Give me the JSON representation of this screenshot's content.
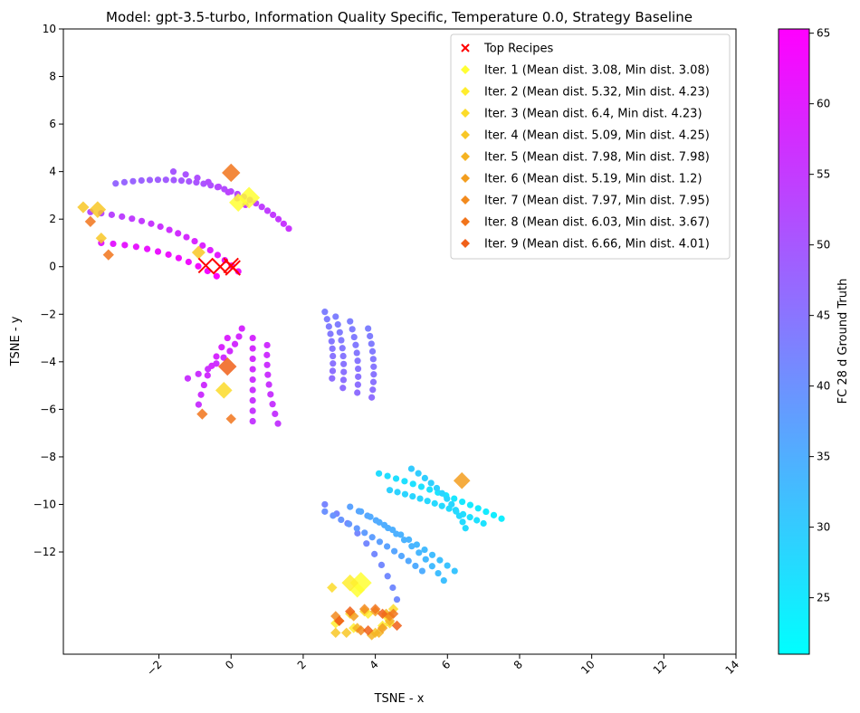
{
  "chart_data": {
    "type": "scatter",
    "title": "Model: gpt-3.5-turbo, Information Quality Specific, Temperature 0.0, Strategy Baseline",
    "xlabel": "TSNE - x",
    "ylabel": "TSNE - y",
    "xlim": [
      -4.65,
      14
    ],
    "ylim": [
      -16.3,
      10
    ],
    "x_ticks": [
      -2,
      0,
      2,
      4,
      6,
      8,
      10,
      12,
      14
    ],
    "x_tick_labels": [
      "−2",
      "0",
      "2",
      "4",
      "6",
      "8",
      "10",
      "12",
      "14"
    ],
    "y_ticks": [
      10,
      8,
      6,
      4,
      2,
      0,
      -2,
      -4,
      -6,
      -8,
      -10,
      -12
    ],
    "y_tick_labels": [
      "10",
      "8",
      "6",
      "4",
      "2",
      "0",
      "−2",
      "−4",
      "−6",
      "−8",
      "−10",
      "−12"
    ],
    "grid": false,
    "legend_position": "top-right",
    "colorbar": {
      "label": "FC 28 d Ground Truth",
      "colormap": "cool",
      "range": [
        21,
        65.3
      ],
      "ticks": [
        25,
        30,
        35,
        40,
        45,
        50,
        55,
        60,
        65
      ]
    },
    "background_points_description": "recipe embedding points colored by ground truth",
    "background_clusters": [
      {
        "x0": -3.2,
        "y0": 3.5,
        "x1": 1.6,
        "y1": 1.6,
        "bow": 0.9,
        "n": 26,
        "v0": 47,
        "v1": 56
      },
      {
        "x0": -3.9,
        "y0": 2.3,
        "x1": 0.2,
        "y1": -0.2,
        "bow": 0.5,
        "n": 18,
        "v0": 52,
        "v1": 62
      },
      {
        "x0": -3.6,
        "y0": 1.0,
        "x1": -0.4,
        "y1": -0.4,
        "bow": 0.3,
        "n": 12,
        "v0": 60,
        "v1": 64
      },
      {
        "x0": -1.6,
        "y0": 4.0,
        "x1": 0.4,
        "y1": 2.6,
        "bow": 0.2,
        "n": 8,
        "v0": 50,
        "v1": 55
      },
      {
        "x0": -1.2,
        "y0": -4.7,
        "x1": 0.3,
        "y1": -2.6,
        "bow": -0.3,
        "n": 9,
        "v0": 56,
        "v1": 58
      },
      {
        "x0": -0.9,
        "y0": -5.8,
        "x1": -0.1,
        "y1": -3.0,
        "bow": 0.1,
        "n": 8,
        "v0": 56,
        "v1": 59
      },
      {
        "x0": 0.6,
        "y0": -6.5,
        "x1": 0.6,
        "y1": -3.0,
        "bow": 0.0,
        "n": 9,
        "v0": 55,
        "v1": 58
      },
      {
        "x0": 1.3,
        "y0": -6.6,
        "x1": 1.0,
        "y1": -3.3,
        "bow": 0.1,
        "n": 9,
        "v0": 55,
        "v1": 57
      },
      {
        "x0": 2.6,
        "y0": -1.9,
        "x1": 2.8,
        "y1": -4.7,
        "bow": 0.1,
        "n": 10,
        "v0": 43,
        "v1": 46
      },
      {
        "x0": 2.9,
        "y0": -2.1,
        "x1": 3.1,
        "y1": -5.1,
        "bow": 0.1,
        "n": 10,
        "v0": 43,
        "v1": 46
      },
      {
        "x0": 3.3,
        "y0": -2.3,
        "x1": 3.5,
        "y1": -5.3,
        "bow": 0.1,
        "n": 10,
        "v0": 43,
        "v1": 46
      },
      {
        "x0": 3.8,
        "y0": -2.6,
        "x1": 3.9,
        "y1": -5.5,
        "bow": 0.1,
        "n": 10,
        "v0": 43,
        "v1": 46
      },
      {
        "x0": 4.1,
        "y0": -8.7,
        "x1": 7.5,
        "y1": -10.6,
        "bow": 0.1,
        "n": 16,
        "v0": 27,
        "v1": 24
      },
      {
        "x0": 4.4,
        "y0": -9.4,
        "x1": 7.0,
        "y1": -10.8,
        "bow": 0.1,
        "n": 14,
        "v0": 29,
        "v1": 26
      },
      {
        "x0": 5.0,
        "y0": -8.5,
        "x1": 6.5,
        "y1": -11.0,
        "bow": 0.2,
        "n": 12,
        "v0": 30,
        "v1": 27
      },
      {
        "x0": 2.6,
        "y0": -10.0,
        "x1": 4.6,
        "y1": -14.0,
        "bow": 0.3,
        "n": 10,
        "v0": 42,
        "v1": 41
      },
      {
        "x0": 2.6,
        "y0": -10.3,
        "x1": 5.3,
        "y1": -12.8,
        "bow": 0.1,
        "n": 14,
        "v0": 40,
        "v1": 35
      },
      {
        "x0": 3.3,
        "y0": -10.1,
        "x1": 6.2,
        "y1": -12.8,
        "bow": 0.1,
        "n": 14,
        "v0": 37,
        "v1": 31
      },
      {
        "x0": 3.6,
        "y0": -10.3,
        "x1": 5.9,
        "y1": -13.2,
        "bow": 0.2,
        "n": 12,
        "v0": 36,
        "v1": 32
      }
    ],
    "top_recipes": {
      "name": "Top Recipes",
      "marker": "x",
      "color": "#ff0000",
      "points": [
        [
          -0.7,
          0.05
        ],
        [
          -0.3,
          0.0
        ],
        [
          0.0,
          0.05
        ],
        [
          0.05,
          -0.05
        ]
      ]
    },
    "series": [
      {
        "name": "Iter. 1 (Mean dist. 3.08, Min dist. 3.08)",
        "color": "#ffff33",
        "points": [
          [
            0.5,
            2.9,
            1.0
          ],
          [
            0.2,
            2.7,
            0.8
          ],
          [
            3.6,
            -13.3,
            1.0
          ],
          [
            3.5,
            -13.6,
            0.6
          ]
        ]
      },
      {
        "name": "Iter. 2 (Mean dist. 5.32, Min dist. 4.23)",
        "color": "#ffed2e",
        "points": [
          [
            3.3,
            -13.3,
            0.7
          ],
          [
            2.9,
            -15.0,
            0.3
          ],
          [
            3.4,
            -15.2,
            0.3
          ],
          [
            4.2,
            -15.1,
            0.3
          ],
          [
            3.8,
            -14.6,
            0.3
          ],
          [
            4.3,
            -14.7,
            0.3
          ]
        ]
      },
      {
        "name": "Iter. 3 (Mean dist. 6.4, Min dist. 4.23)",
        "color": "#fcdb29",
        "points": [
          [
            -0.2,
            -5.2,
            0.7
          ],
          [
            2.8,
            -13.5,
            0.3
          ],
          [
            3.0,
            -14.9,
            0.3
          ],
          [
            3.7,
            -14.5,
            0.3
          ],
          [
            4.4,
            -15.0,
            0.3
          ],
          [
            4.5,
            -14.4,
            0.3
          ],
          [
            3.3,
            -14.6,
            0.3
          ]
        ]
      },
      {
        "name": "Iter. 4 (Mean dist. 5.09, Min dist. 4.25)",
        "color": "#f8c726",
        "points": [
          [
            -3.7,
            2.4,
            0.7
          ],
          [
            -3.6,
            1.2,
            0.35
          ],
          [
            -4.1,
            2.5,
            0.4
          ],
          [
            -0.9,
            0.6,
            0.5
          ],
          [
            2.9,
            -15.4,
            0.3
          ],
          [
            3.2,
            -15.4,
            0.3
          ],
          [
            4.0,
            -15.4,
            0.3
          ]
        ]
      },
      {
        "name": "Iter. 5 (Mean dist. 7.98, Min dist. 7.98)",
        "color": "#f5b322",
        "points": [
          [
            3.9,
            -15.5,
            0.3
          ],
          [
            4.3,
            -14.6,
            0.3
          ],
          [
            3.5,
            -15.2,
            0.3
          ],
          [
            4.1,
            -15.4,
            0.3
          ],
          [
            4.4,
            -14.9,
            0.3
          ]
        ]
      },
      {
        "name": "Iter. 6 (Mean dist. 5.19, Min dist. 1.2)",
        "color": "#f39e1f",
        "points": [
          [
            6.4,
            -9.0,
            0.7
          ],
          [
            3.4,
            -14.7,
            0.3
          ],
          [
            4.0,
            -14.5,
            0.3
          ],
          [
            4.2,
            -15.2,
            0.3
          ],
          [
            3.0,
            -14.9,
            0.3
          ]
        ]
      },
      {
        "name": "Iter. 7 (Mean dist. 7.97, Min dist. 7.95)",
        "color": "#f28a1d",
        "points": [
          [
            3.6,
            -15.3,
            0.3
          ],
          [
            4.4,
            -14.7,
            0.3
          ],
          [
            3.7,
            -14.4,
            0.3
          ],
          [
            2.9,
            -14.7,
            0.3
          ]
        ]
      },
      {
        "name": "Iter. 8 (Mean dist. 6.03, Min dist. 3.67)",
        "color": "#f1741b",
        "points": [
          [
            0.0,
            3.95,
            0.8
          ],
          [
            -3.9,
            1.9,
            0.35
          ],
          [
            -3.4,
            0.5,
            0.35
          ],
          [
            -0.8,
            -6.2,
            0.35
          ],
          [
            0.0,
            -6.4,
            0.3
          ],
          [
            4.0,
            -14.4,
            0.3
          ],
          [
            4.5,
            -14.6,
            0.3
          ]
        ]
      },
      {
        "name": "Iter. 9 (Mean dist. 6.66, Min dist. 4.01)",
        "color": "#f06019",
        "points": [
          [
            -0.1,
            -4.2,
            0.8
          ],
          [
            3.8,
            -15.3,
            0.3
          ],
          [
            4.2,
            -14.6,
            0.3
          ],
          [
            3.0,
            -14.9,
            0.3
          ],
          [
            4.6,
            -15.1,
            0.3
          ],
          [
            3.3,
            -14.5,
            0.3
          ]
        ]
      }
    ]
  }
}
